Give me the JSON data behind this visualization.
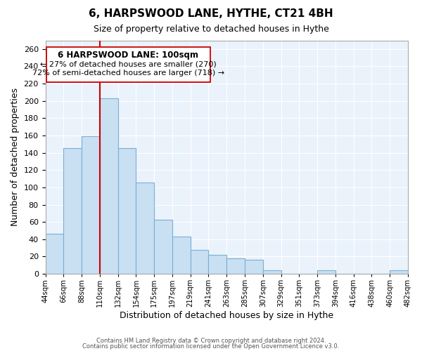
{
  "title": "6, HARPSWOOD LANE, HYTHE, CT21 4BH",
  "subtitle": "Size of property relative to detached houses in Hythe",
  "xlabel": "Distribution of detached houses by size in Hythe",
  "ylabel": "Number of detached properties",
  "bar_color": "#c9dff2",
  "bar_edge_color": "#7ab0d4",
  "marker_line_color": "#cc0000",
  "annotation_title": "6 HARPSWOOD LANE: 100sqm",
  "annotation_line1": "← 27% of detached houses are smaller (270)",
  "annotation_line2": "72% of semi-detached houses are larger (718) →",
  "footer_line1": "Contains HM Land Registry data © Crown copyright and database right 2024.",
  "footer_line2": "Contains public sector information licensed under the Open Government Licence v3.0.",
  "bin_labels": [
    "44sqm",
    "66sqm",
    "88sqm",
    "110sqm",
    "132sqm",
    "154sqm",
    "175sqm",
    "197sqm",
    "219sqm",
    "241sqm",
    "263sqm",
    "285sqm",
    "307sqm",
    "329sqm",
    "351sqm",
    "373sqm",
    "394sqm",
    "416sqm",
    "438sqm",
    "460sqm",
    "482sqm"
  ],
  "bar_heights": [
    46,
    145,
    159,
    203,
    145,
    106,
    63,
    43,
    28,
    22,
    18,
    16,
    4,
    0,
    0,
    4,
    0,
    0,
    0,
    4
  ],
  "ylim": [
    0,
    270
  ],
  "yticks": [
    0,
    20,
    40,
    60,
    80,
    100,
    120,
    140,
    160,
    180,
    200,
    220,
    240,
    260
  ],
  "figsize": [
    6.0,
    5.0
  ],
  "dpi": 100
}
